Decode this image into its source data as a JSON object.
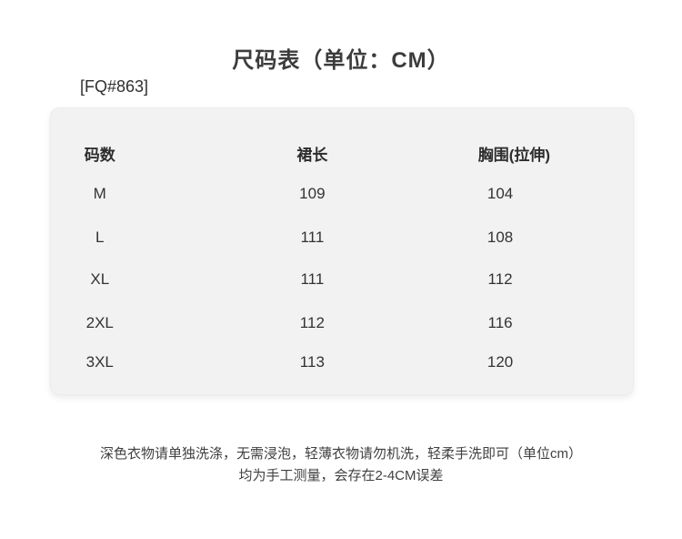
{
  "page": {
    "title": "尺码表（单位：CM）",
    "sku": "[FQ#863]"
  },
  "table": {
    "headers": [
      "码数",
      "裙长",
      "胸围(拉伸)"
    ],
    "rows": [
      {
        "size": "M",
        "length": "109",
        "bust": "104"
      },
      {
        "size": "L",
        "length": "111",
        "bust": "108"
      },
      {
        "size": "XL",
        "length": "111",
        "bust": "112"
      },
      {
        "size": "2XL",
        "length": "112",
        "bust": "116"
      },
      {
        "size": "3XL",
        "length": "113",
        "bust": "120"
      }
    ]
  },
  "footer": {
    "line1": "深色衣物请单独洗涤，无需浸泡，轻薄衣物请勿机洗，轻柔手洗即可（单位cm）",
    "line2": "均为手工测量，会存在2-4CM误差"
  }
}
